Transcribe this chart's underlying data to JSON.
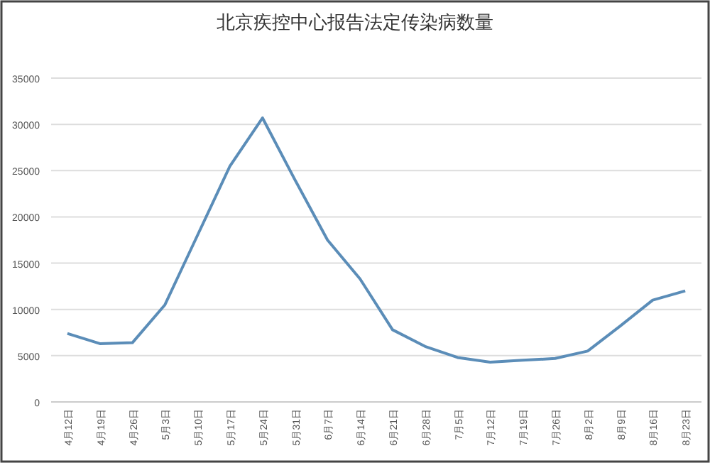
{
  "chart_data": {
    "type": "line",
    "title": "北京疾控中心报告法定传染病数量",
    "categories": [
      "4月12日",
      "4月19日",
      "4月26日",
      "5月3日",
      "5月10日",
      "5月17日",
      "5月24日",
      "5月31日",
      "6月7日",
      "6月14日",
      "6月21日",
      "6月28日",
      "7月5日",
      "7月12日",
      "7月19日",
      "7月26日",
      "8月2日",
      "8月9日",
      "8月16日",
      "8月23日"
    ],
    "series": [
      {
        "color": "#5b8db8",
        "values": [
          7400,
          6300,
          6400,
          10500,
          18000,
          25500,
          30700,
          24000,
          17500,
          13300,
          7800,
          6000,
          4800,
          4300,
          4500,
          4700,
          5500,
          8200,
          11000,
          12000
        ]
      }
    ],
    "ylim": [
      0,
      35000
    ],
    "yticks": [
      0,
      5000,
      10000,
      15000,
      20000,
      25000,
      30000,
      35000
    ],
    "grid": "y"
  }
}
